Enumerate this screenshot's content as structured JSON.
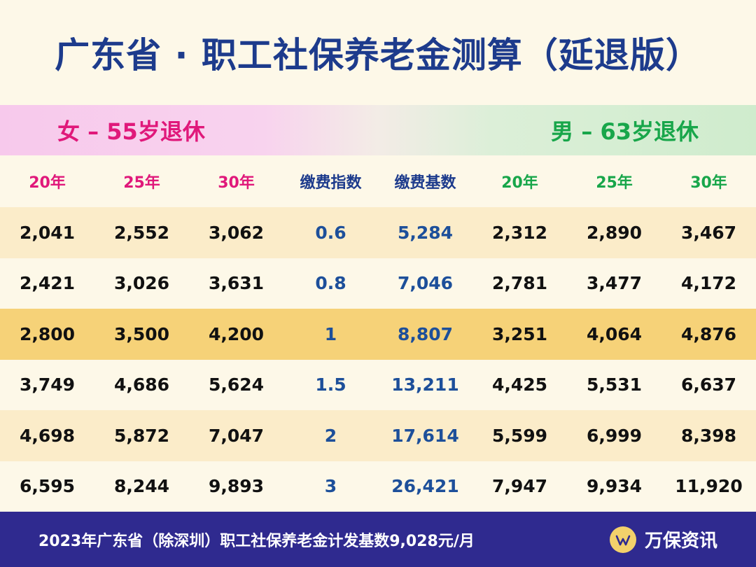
{
  "title": "广东省 · 职工社保养老金测算（延退版）",
  "female_group": "女 – 55岁退休",
  "male_group": "男 – 63岁退休",
  "headers": [
    "20年",
    "25年",
    "30年",
    "缴费指数",
    "缴费基数",
    "20年",
    "25年",
    "30年"
  ],
  "rows": [
    [
      "2,041",
      "2,552",
      "3,062",
      "0.6",
      "5,284",
      "2,312",
      "2,890",
      "3,467"
    ],
    [
      "2,421",
      "3,026",
      "3,631",
      "0.8",
      "7,046",
      "2,781",
      "3,477",
      "4,172"
    ],
    [
      "2,800",
      "3,500",
      "4,200",
      "1",
      "8,807",
      "3,251",
      "4,064",
      "4,876"
    ],
    [
      "3,749",
      "4,686",
      "5,624",
      "1.5",
      "13,211",
      "4,425",
      "5,531",
      "6,637"
    ],
    [
      "4,698",
      "5,872",
      "7,047",
      "2",
      "17,614",
      "5,599",
      "6,999",
      "8,398"
    ],
    [
      "6,595",
      "8,244",
      "9,893",
      "3",
      "26,421",
      "7,947",
      "9,934",
      "11,920"
    ]
  ],
  "footer_note": "2023年广东省（除深圳）职工社保养老金计发基数9,028元/月",
  "brand_name": "万保资讯",
  "brand_icon": "wanbao-logo-icon",
  "colors": {
    "title": "#1d3b8c",
    "female": "#e0187a",
    "male": "#18a64a",
    "highlight_row": "#f6d278",
    "footer_bg": "#2f2a8f"
  }
}
